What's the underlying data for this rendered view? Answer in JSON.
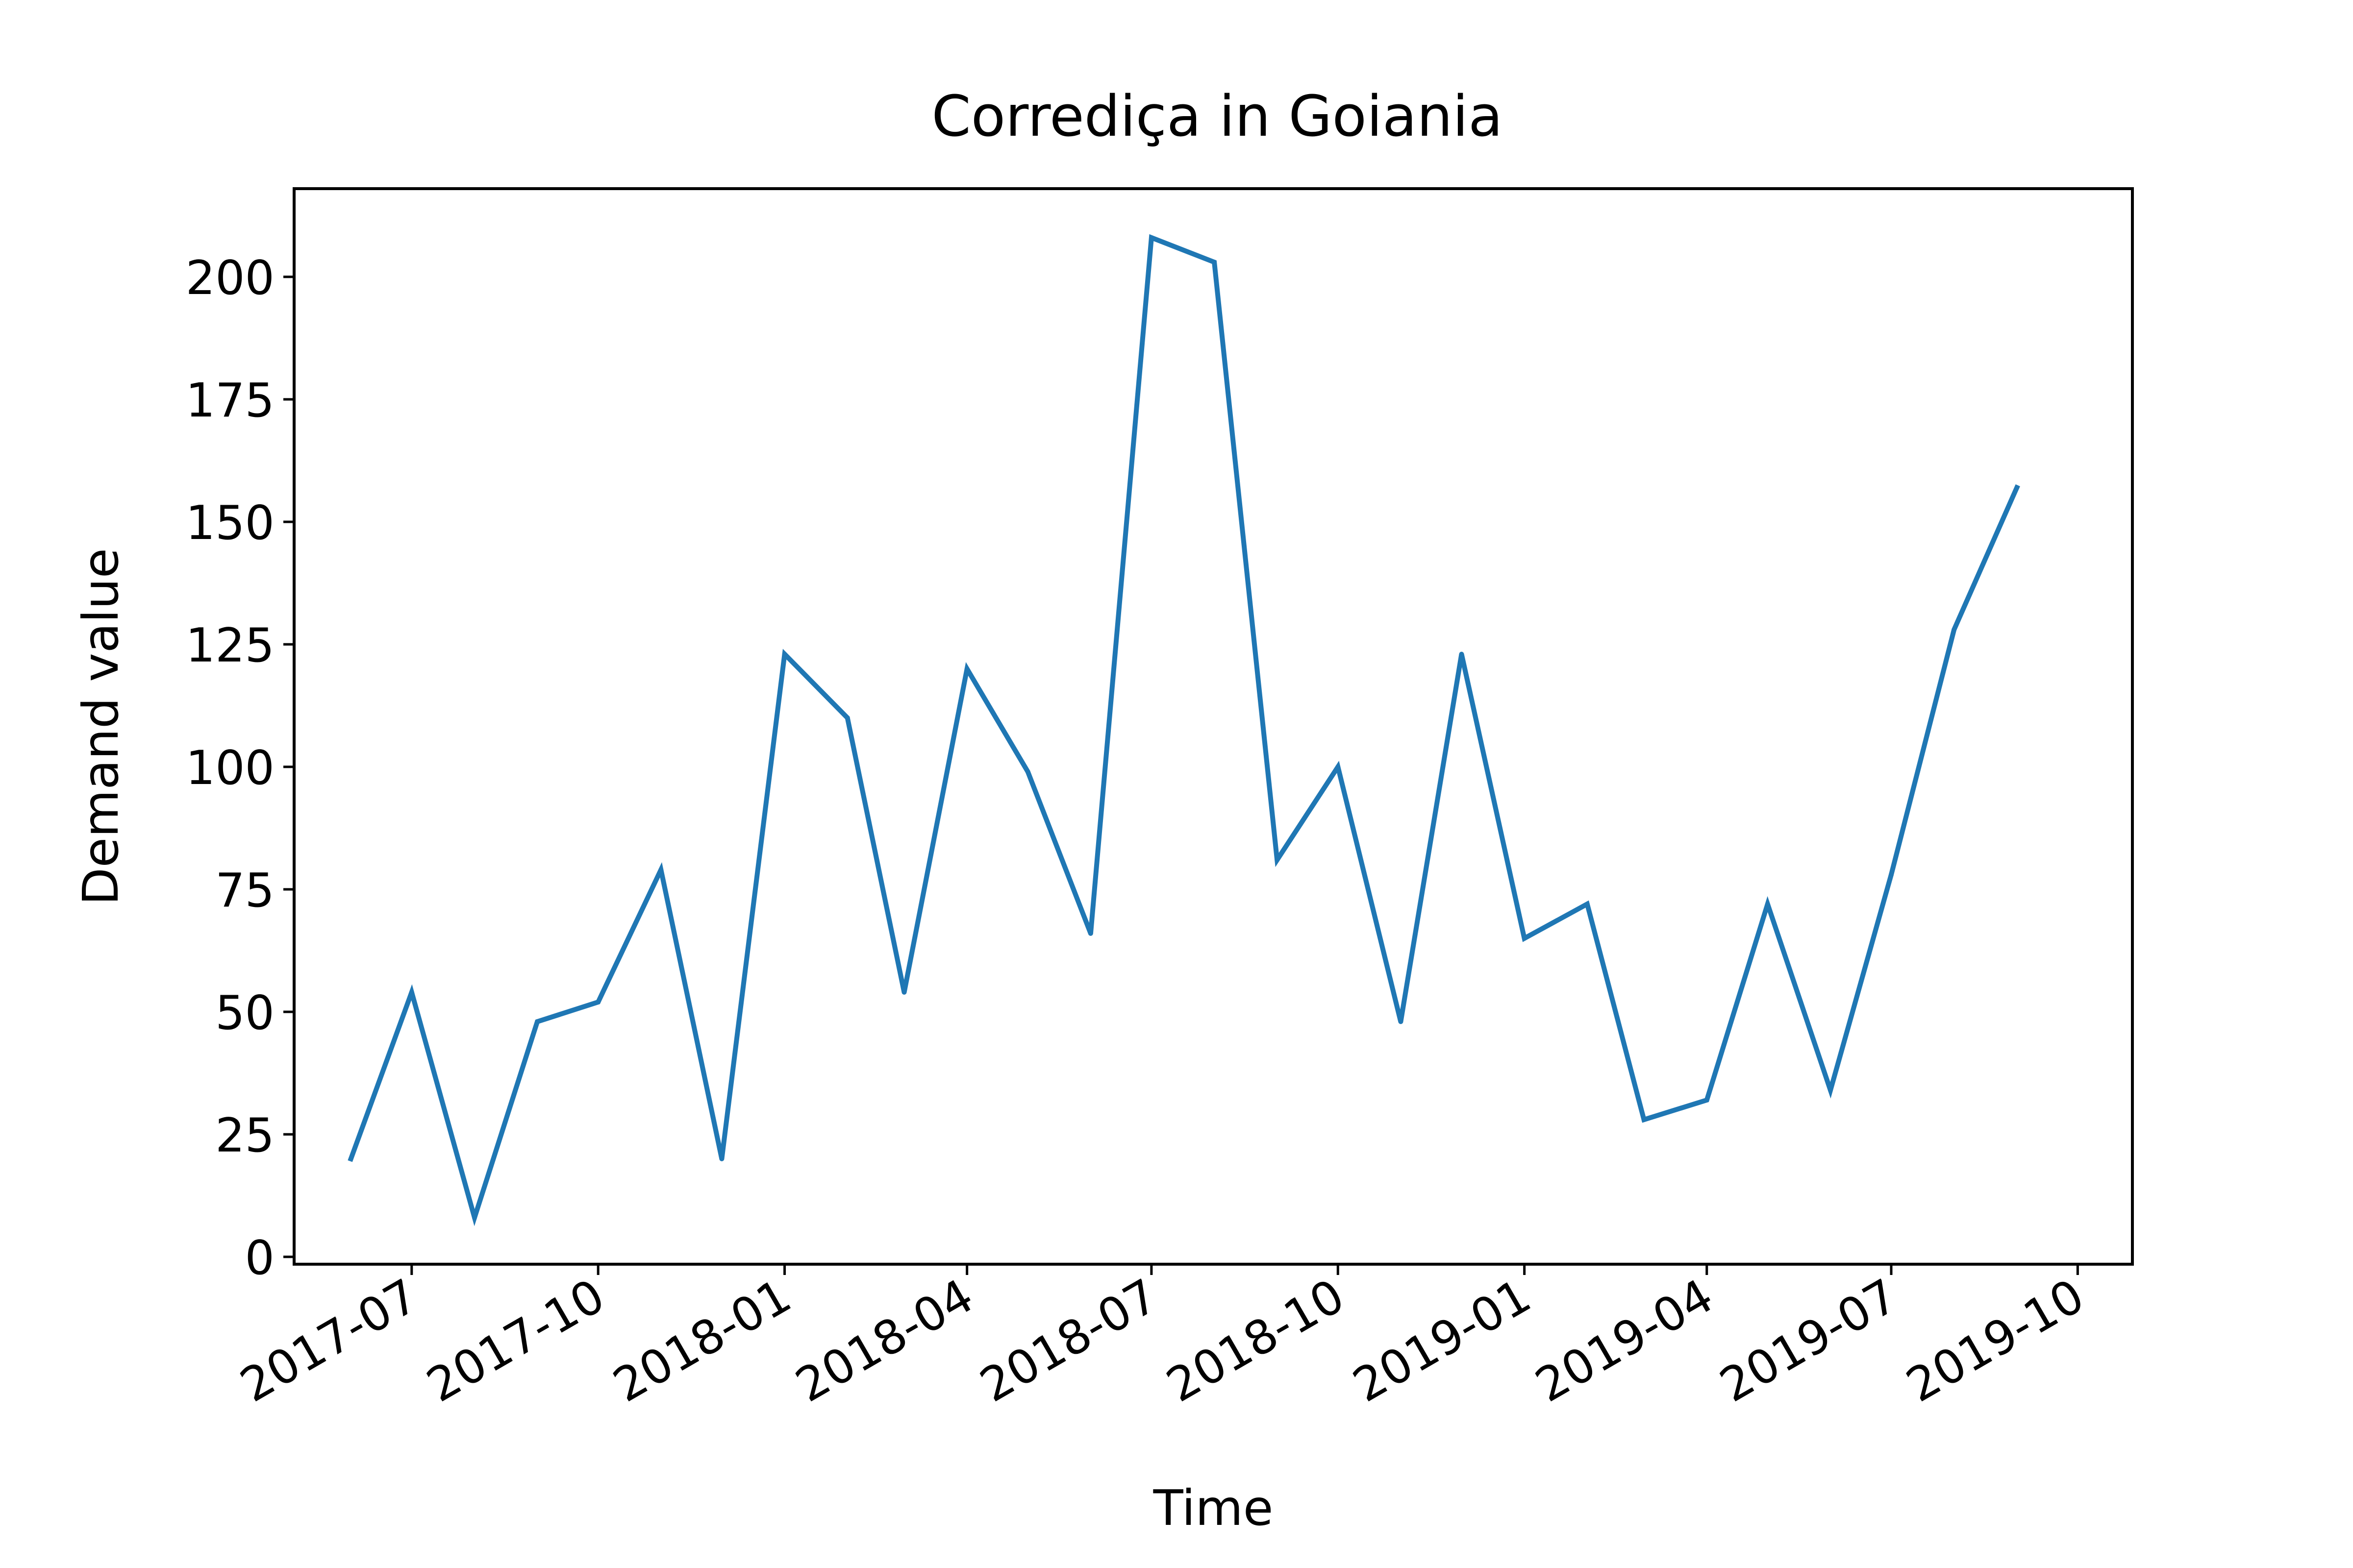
{
  "chart_data": {
    "type": "line",
    "title": "Corrediça in Goiania",
    "xlabel": "Time",
    "ylabel": "Demand value",
    "grid": false,
    "legend": "none",
    "x_ticks": [
      "2017-07",
      "2017-10",
      "2018-01",
      "2018-04",
      "2018-07",
      "2018-10",
      "2019-01",
      "2019-04",
      "2019-07",
      "2019-10"
    ],
    "y_ticks": [
      0,
      25,
      50,
      75,
      100,
      125,
      150,
      175,
      200
    ],
    "ylim": [
      -1.5,
      218
    ],
    "xlim": [
      "2017-05-04",
      "2019-10-28"
    ],
    "line_color": "#1f77b4",
    "series": [
      {
        "x": [
          "2017-06-01",
          "2017-07-01",
          "2017-08-01",
          "2017-09-01",
          "2017-10-01",
          "2017-11-01",
          "2017-12-01",
          "2018-01-01",
          "2018-02-01",
          "2018-03-01",
          "2018-04-01",
          "2018-05-01",
          "2018-06-01",
          "2018-07-01",
          "2018-08-01",
          "2018-09-01",
          "2018-10-01",
          "2018-11-01",
          "2018-12-01",
          "2019-01-01",
          "2019-02-01",
          "2019-03-01",
          "2019-04-01",
          "2019-05-01",
          "2019-06-01",
          "2019-07-01",
          "2019-08-01",
          "2019-09-01"
        ],
        "values": [
          20,
          54,
          8,
          48,
          52,
          79,
          20,
          123,
          110,
          54,
          120,
          99,
          66,
          208,
          203,
          81,
          100,
          48,
          123,
          65,
          72,
          28,
          32,
          72,
          34,
          78,
          128,
          157
        ]
      }
    ]
  }
}
